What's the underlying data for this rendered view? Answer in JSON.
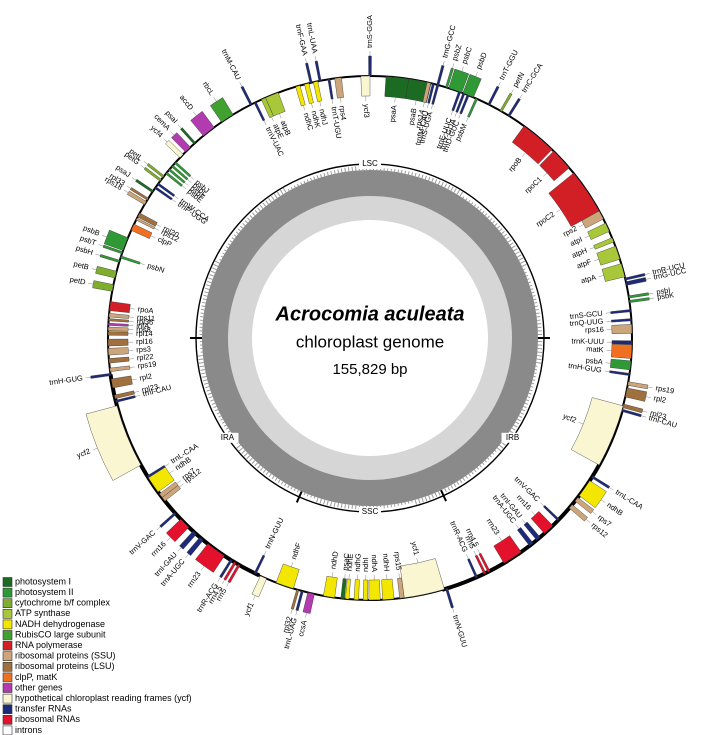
{
  "title": "Acrocomia aculeata",
  "subtitle": "chloroplast genome",
  "size": "155,829 bp",
  "regions": [
    "LSC",
    "IRB",
    "SSC",
    "IRA"
  ],
  "legend": [
    {
      "label": "photosystem I",
      "color": "#1b6b22"
    },
    {
      "label": "photosystem II",
      "color": "#2f9a35"
    },
    {
      "label": "cytochrome b/f complex",
      "color": "#7fae2e"
    },
    {
      "label": "ATP synthase",
      "color": "#a8c83a"
    },
    {
      "label": "NADH dehydrogenase",
      "color": "#f3e600"
    },
    {
      "label": "RubisCO large subunit",
      "color": "#40a030"
    },
    {
      "label": "RNA polymerase",
      "color": "#d21f26"
    },
    {
      "label": "ribosomal proteins (SSU)",
      "color": "#cda57a"
    },
    {
      "label": "ribosomal proteins (LSU)",
      "color": "#a0713f"
    },
    {
      "label": "clpP, matK",
      "color": "#f07022"
    },
    {
      "label": "other genes",
      "color": "#b23bb0"
    },
    {
      "label": "hypothetical chloroplast reading frames (ycf)",
      "color": "#fbf6d2"
    },
    {
      "label": "transfer RNAs",
      "color": "#1d2a7a"
    },
    {
      "label": "ribosomal RNAs",
      "color": "#e4112d"
    },
    {
      "label": "introns",
      "color": "#ffffff"
    }
  ],
  "genes": [
    "trnS-GGA",
    "ycf3",
    "psaA",
    "psaB",
    "rps14",
    "trnfM-CAU",
    "trnS-UGA",
    "trnG-GCC",
    "psbZ",
    "psbC",
    "psbD",
    "trnT-GGU",
    "trnE-UUC",
    "trnY-GUA",
    "trnD-GUC",
    "psbM",
    "petN",
    "trnC-GCA",
    "rpoB",
    "rpoC1",
    "rpoC2",
    "rps2",
    "atpI",
    "atpH",
    "atpF",
    "atpA",
    "trnR-UCU",
    "trnG-UCC",
    "psbI",
    "psbK",
    "trnS-GCU",
    "trnQ-UUG",
    "rps16",
    "trnK-UUU",
    "matK",
    "psbA",
    "trnH-GUG",
    "rps19",
    "rpl2",
    "rpl23",
    "trnI-CAU",
    "ycf2",
    "trnL-CAA",
    "ndhB",
    "rps7",
    "rps12",
    "trnV-GAC",
    "rrn16",
    "trnI-GAU",
    "trnA-UGC",
    "rrn23",
    "rrn4.5",
    "rrn5",
    "trnR-ACG",
    "trnN-GUU",
    "ycf1",
    "rps15",
    "ndhH",
    "ndhA",
    "ndhI",
    "ndhG",
    "ndhE",
    "psaC",
    "ndhD",
    "ccsA",
    "trnL-UAG",
    "rpl32",
    "ndhF",
    "ycf1",
    "trnN-GUU",
    "rrn5",
    "rrn4.5",
    "trnR-ACG",
    "rrn23",
    "trnA-UGC",
    "trnI-GAU",
    "rrn16",
    "trnV-GAC",
    "rps12",
    "rps7",
    "ndhB",
    "trnL-CAA",
    "ycf2",
    "trnI-CAU",
    "rpl23",
    "rpl2",
    "trnH-GUG",
    "rps19",
    "rpl22",
    "rps3",
    "rpl16",
    "rpl14",
    "rps8",
    "infA",
    "rpl36",
    "rps11",
    "rpoA",
    "petD",
    "petB",
    "psbH",
    "psbN",
    "psbT",
    "psbB",
    "clpP",
    "rps12",
    "rpl20",
    "rps18",
    "rpl33",
    "psaJ",
    "trnP-UGG",
    "trnW-CCA",
    "petG",
    "petL",
    "psbE",
    "psbF",
    "psbL",
    "psbJ",
    "ycf4",
    "cemA",
    "psaI",
    "accD",
    "rbcL",
    "trnM-CAU",
    "trnV-UAC",
    "atpE",
    "atpB",
    "ndhC",
    "ndhK",
    "ndhJ",
    "trnF-GAA",
    "trnL-UAA",
    "trnT-UGU",
    "rps4"
  ]
}
